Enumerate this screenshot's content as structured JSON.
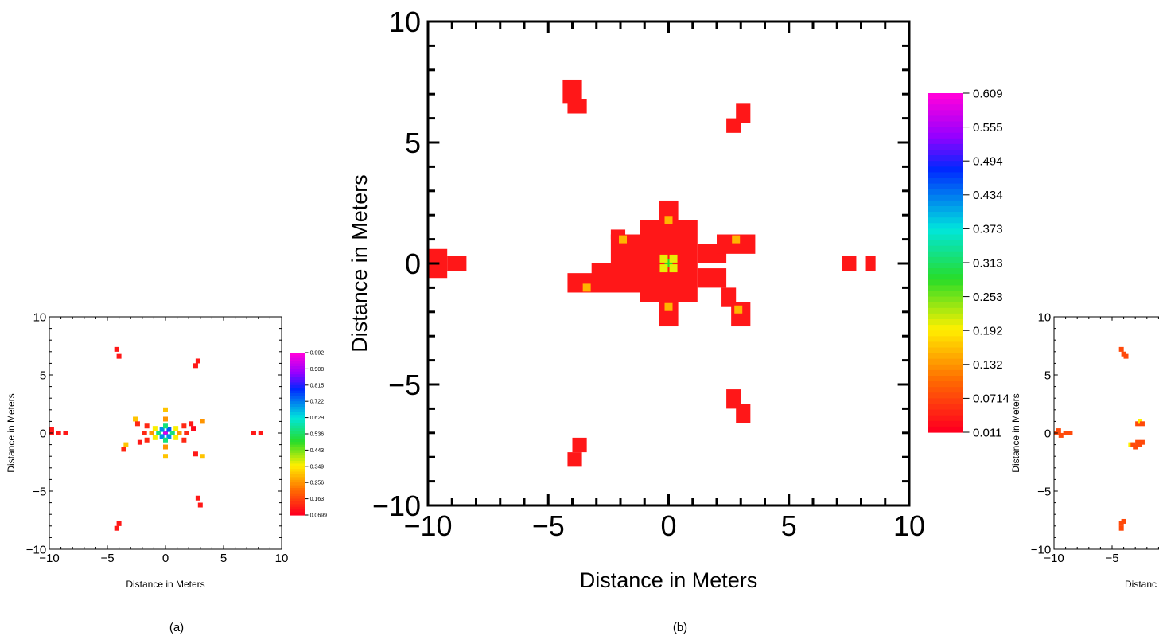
{
  "chart_data": [
    {
      "type": "heatmap",
      "panel_label": "(a)",
      "xlabel": "Distance in Meters",
      "ylabel": "Distance in Meters",
      "xlim": [
        -10,
        10
      ],
      "ylim": [
        -10,
        10
      ],
      "xticks": [
        -10,
        -5,
        0,
        5,
        10
      ],
      "yticks": [
        -10,
        -5,
        0,
        5,
        10
      ],
      "colorbar_ticks": [
        "0.992",
        "0.908",
        "0.815",
        "0.722",
        "0.629",
        "0.536",
        "0.443",
        "0.349",
        "0.256",
        "0.163",
        "0.0699"
      ],
      "colorbar_range": [
        0.0699,
        0.992
      ],
      "cells": [
        [
          0,
          0,
          0.95
        ],
        [
          0.3,
          0.3,
          0.75
        ],
        [
          -0.3,
          -0.3,
          0.7
        ],
        [
          0.3,
          -0.3,
          0.7
        ],
        [
          -0.3,
          0.3,
          0.7
        ],
        [
          0.6,
          0,
          0.55
        ],
        [
          -0.6,
          0,
          0.55
        ],
        [
          0,
          0.6,
          0.55
        ],
        [
          0,
          -0.6,
          0.55
        ],
        [
          0.9,
          0.4,
          0.35
        ],
        [
          -0.9,
          0.4,
          0.35
        ],
        [
          0.9,
          -0.4,
          0.35
        ],
        [
          -0.9,
          -0.4,
          0.35
        ],
        [
          1.2,
          0,
          0.25
        ],
        [
          -1.2,
          0,
          0.25
        ],
        [
          0,
          1.2,
          0.25
        ],
        [
          0,
          -1.2,
          0.25
        ],
        [
          1.6,
          0.6,
          0.12
        ],
        [
          -1.6,
          0.6,
          0.12
        ],
        [
          1.6,
          -0.6,
          0.12
        ],
        [
          -1.6,
          -0.6,
          0.12
        ],
        [
          1.8,
          0,
          0.12
        ],
        [
          -1.8,
          0,
          0.12
        ],
        [
          0,
          2,
          0.3
        ],
        [
          0,
          -2,
          0.3
        ],
        [
          2.2,
          0.8,
          0.1
        ],
        [
          2.4,
          0.4,
          0.08
        ],
        [
          -2.2,
          -0.8,
          0.1
        ],
        [
          -2.6,
          1.2,
          0.3
        ],
        [
          3.2,
          1,
          0.25
        ],
        [
          3.2,
          -2,
          0.3
        ],
        [
          2.6,
          -1.8,
          0.1
        ],
        [
          -3.4,
          -1,
          0.3
        ],
        [
          -3.6,
          -1.4,
          0.12
        ],
        [
          -2.4,
          0.8,
          0.12
        ],
        [
          -4.2,
          7.2,
          0.1
        ],
        [
          -4,
          6.6,
          0.1
        ],
        [
          2.8,
          6.2,
          0.1
        ],
        [
          2.6,
          5.8,
          0.1
        ],
        [
          2.8,
          -5.6,
          0.1
        ],
        [
          3,
          -6.2,
          0.1
        ],
        [
          -4,
          -7.8,
          0.1
        ],
        [
          -4.2,
          -8.2,
          0.1
        ],
        [
          -9.8,
          0,
          0.1
        ],
        [
          -9.8,
          0.3,
          0.1
        ],
        [
          -9.2,
          0,
          0.1
        ],
        [
          -8.6,
          0,
          0.1
        ],
        [
          7.6,
          0,
          0.1
        ],
        [
          8.2,
          0,
          0.1
        ]
      ]
    },
    {
      "type": "heatmap",
      "panel_label": "(b)",
      "xlabel": "Distance in Meters",
      "ylabel": "Distance in Meters",
      "xlim": [
        -10,
        10
      ],
      "ylim": [
        -10,
        10
      ],
      "xticks": [
        -10,
        -5,
        0,
        5,
        10
      ],
      "yticks": [
        -10,
        -5,
        0,
        5,
        10
      ],
      "colorbar_ticks": [
        "0.609",
        "0.555",
        "0.494",
        "0.434",
        "0.373",
        "0.313",
        "0.253",
        "0.192",
        "0.132",
        "0.0714",
        "0.011"
      ],
      "colorbar_range": [
        0.011,
        0.609
      ],
      "cells": [
        [
          0,
          0,
          0.28
        ],
        [
          0.2,
          0.2,
          0.2
        ],
        [
          -0.2,
          -0.2,
          0.2
        ],
        [
          0.2,
          -0.2,
          0.2
        ],
        [
          -0.2,
          0.2,
          0.2
        ],
        [
          0,
          1.8,
          0.15
        ],
        [
          0,
          -1.8,
          0.15
        ],
        [
          -1.9,
          1,
          0.15
        ],
        [
          2.8,
          1,
          0.15
        ],
        [
          -3.4,
          -1,
          0.15
        ],
        [
          2.9,
          -1.9,
          0.15
        ]
      ],
      "regions": [
        [
          -1.2,
          1.2,
          -1.6,
          1.8,
          0.03
        ],
        [
          -0.4,
          0.4,
          1.6,
          2.6,
          0.03
        ],
        [
          -0.4,
          0.4,
          -2.6,
          -1.6,
          0.03
        ],
        [
          1.2,
          2.4,
          0,
          0.8,
          0.03
        ],
        [
          2.0,
          3.6,
          0.4,
          1.2,
          0.03
        ],
        [
          -2.4,
          -1.2,
          0,
          1.2,
          0.03
        ],
        [
          -2.4,
          -1.8,
          1,
          1.4,
          0.03
        ],
        [
          -4.2,
          -1.2,
          -1.2,
          -0.4,
          0.03
        ],
        [
          -3.2,
          -1.2,
          -0.8,
          0,
          0.03
        ],
        [
          1.2,
          2.4,
          -1.0,
          -0.2,
          0.03
        ],
        [
          2.2,
          2.8,
          -1.8,
          -1.0,
          0.03
        ],
        [
          2.6,
          3.4,
          -2.6,
          -1.6,
          0.03
        ],
        [
          -4.4,
          -3.6,
          6.6,
          7.6,
          0.03
        ],
        [
          -4.2,
          -3.4,
          6.2,
          6.8,
          0.03
        ],
        [
          2.4,
          3.0,
          5.4,
          6.0,
          0.03
        ],
        [
          2.8,
          3.4,
          5.8,
          6.6,
          0.03
        ],
        [
          2.4,
          3.0,
          -6.0,
          -5.2,
          0.03
        ],
        [
          2.8,
          3.4,
          -6.6,
          -5.8,
          0.03
        ],
        [
          -4.2,
          -3.6,
          -8.4,
          -7.8,
          0.03
        ],
        [
          -4.0,
          -3.4,
          -7.8,
          -7.2,
          0.03
        ],
        [
          -10,
          -9.2,
          -0.6,
          0.6,
          0.03
        ],
        [
          -9.2,
          -8.8,
          -0.3,
          0.3,
          0.03
        ],
        [
          -8.8,
          -8.4,
          -0.3,
          0.3,
          0.03
        ],
        [
          7.2,
          7.8,
          -0.3,
          0.3,
          0.03
        ],
        [
          8.2,
          8.6,
          -0.3,
          0.3,
          0.03
        ]
      ]
    },
    {
      "type": "heatmap",
      "panel_label": "",
      "xlabel": "Distanc",
      "ylabel": "Distance in Meters",
      "xlim": [
        -10,
        10
      ],
      "ylim": [
        -10,
        10
      ],
      "xticks": [
        -10,
        -5
      ],
      "yticks": [
        -10,
        -5,
        0,
        5,
        10
      ],
      "cells": [
        [
          -4.2,
          7.2,
          0.1
        ],
        [
          -4,
          6.8,
          0.1
        ],
        [
          -3.8,
          6.6,
          0.1
        ],
        [
          -9.8,
          0,
          0.1
        ],
        [
          -9.6,
          0.2,
          0.1
        ],
        [
          -9.4,
          -0.2,
          0.1
        ],
        [
          -9,
          0,
          0.1
        ],
        [
          -8.6,
          0,
          0.1
        ],
        [
          -2.8,
          0.8,
          0.1
        ],
        [
          -2.6,
          1,
          0.3
        ],
        [
          -2.4,
          0.8,
          0.1
        ],
        [
          -3.4,
          -1,
          0.3
        ],
        [
          -3.2,
          -1,
          0.1
        ],
        [
          -3,
          -1.2,
          0.1
        ],
        [
          -2.8,
          -0.8,
          0.1
        ],
        [
          -2.6,
          -1,
          0.1
        ],
        [
          -2.4,
          -0.8,
          0.1
        ],
        [
          -4.2,
          -7.8,
          0.1
        ],
        [
          -4,
          -7.6,
          0.1
        ],
        [
          -4.2,
          -8.2,
          0.1
        ]
      ]
    }
  ]
}
